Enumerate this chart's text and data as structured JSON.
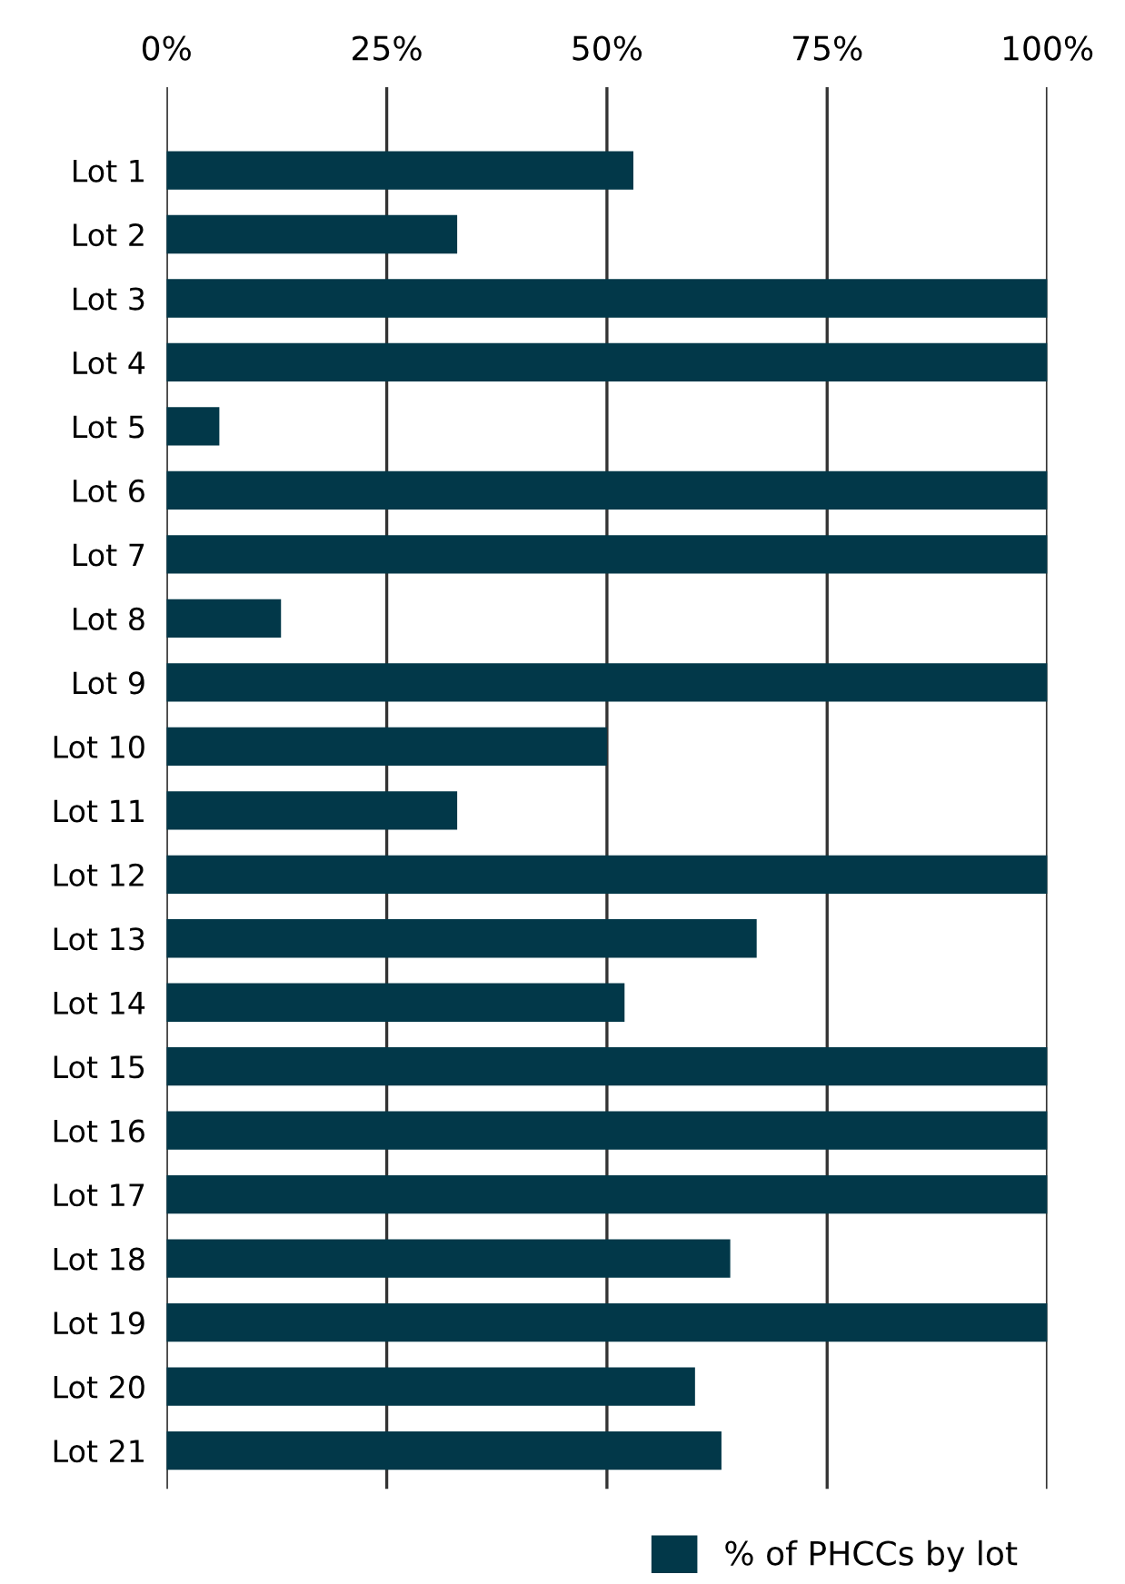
{
  "chart_data": {
    "type": "bar",
    "orientation": "horizontal",
    "categories": [
      "Lot 1",
      "Lot 2",
      "Lot 3",
      "Lot 4",
      "Lot 5",
      "Lot 6",
      "Lot 7",
      "Lot 8",
      "Lot 9",
      "Lot 10",
      "Lot 11",
      "Lot 12",
      "Lot 13",
      "Lot 14",
      "Lot 15",
      "Lot 16",
      "Lot 17",
      "Lot 18",
      "Lot 19",
      "Lot 20",
      "Lot 21"
    ],
    "series": [
      {
        "name": "% of PHCCs by lot",
        "color": "#023849",
        "values": [
          53,
          33,
          100,
          100,
          6,
          100,
          100,
          13,
          100,
          50,
          33,
          100,
          67,
          52,
          100,
          100,
          100,
          64,
          100,
          60,
          63
        ]
      }
    ],
    "xlim": [
      0,
      100
    ],
    "xticks": [
      {
        "value": 0,
        "label": "0%"
      },
      {
        "value": 25,
        "label": "25%"
      },
      {
        "value": 50,
        "label": "50%"
      },
      {
        "value": 75,
        "label": "75%"
      },
      {
        "value": 100,
        "label": "100%"
      }
    ],
    "grid": "x",
    "legend": "bottom right"
  }
}
